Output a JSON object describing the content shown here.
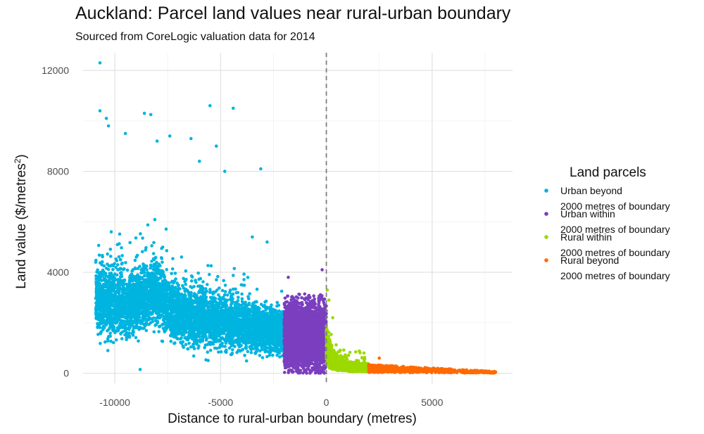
{
  "title": "Auckland: Parcel land values near rural-urban boundary",
  "subtitle": "Sourced from CoreLogic valuation data for 2014",
  "chart_data": {
    "type": "scatter",
    "xlabel": "Distance to rural-urban boundary (metres)",
    "ylabel_main": "Land value ($/metres",
    "ylabel_sup": "2",
    "ylabel_close": ")",
    "xlim": [
      -11500,
      8800
    ],
    "ylim": [
      -400,
      12700
    ],
    "x_ticks": [
      -10000,
      -5000,
      0,
      5000
    ],
    "x_tick_labels": [
      "-10000",
      "-5000",
      "0",
      "5000"
    ],
    "y_ticks": [
      0,
      4000,
      8000,
      12000
    ],
    "y_tick_labels": [
      "0",
      "4000",
      "8000",
      "12000"
    ],
    "reference_line": {
      "x": 0,
      "style": "dashed"
    },
    "grid": true,
    "legend": {
      "title": "Land parcels",
      "placement": "right",
      "entries": [
        {
          "line1": "Urban beyond",
          "line2": "2000 metres of boundary",
          "color": "#00b4e0"
        },
        {
          "line1": "Urban within",
          "line2": "2000 metres of boundary",
          "color": "#7a3fbf"
        },
        {
          "line1": "Rural within",
          "line2": "2000 metres of boundary",
          "color": "#9bd900"
        },
        {
          "line1": "Rural beyond",
          "line2": "2000 metres of boundary",
          "color": "#ff6a00"
        }
      ]
    },
    "series": [
      {
        "name": "Urban beyond 2000 metres of boundary",
        "color": "#00b4e0",
        "x_range": [
          -10900,
          -2000
        ],
        "typical_y_range": [
          600,
          4500
        ],
        "points": [
          {
            "x": -10700,
            "y": 12300
          },
          {
            "x": -10700,
            "y": 10400
          },
          {
            "x": -10400,
            "y": 10100
          },
          {
            "x": -10300,
            "y": 9800
          },
          {
            "x": -9500,
            "y": 9500
          },
          {
            "x": -8600,
            "y": 10300
          },
          {
            "x": -8300,
            "y": 10250
          },
          {
            "x": -8000,
            "y": 9200
          },
          {
            "x": -7400,
            "y": 9400
          },
          {
            "x": -6400,
            "y": 9300
          },
          {
            "x": -6000,
            "y": 8400
          },
          {
            "x": -5500,
            "y": 10600
          },
          {
            "x": -5200,
            "y": 9000
          },
          {
            "x": -4800,
            "y": 8000
          },
          {
            "x": -4400,
            "y": 10500
          },
          {
            "x": -3100,
            "y": 8100
          },
          {
            "x": -10900,
            "y": 4400
          },
          {
            "x": -8800,
            "y": 150
          },
          {
            "x": -3500,
            "y": 5400
          },
          {
            "x": -2800,
            "y": 5200
          }
        ]
      },
      {
        "name": "Urban within 2000 metres of boundary",
        "color": "#7a3fbf",
        "x_range": [
          -2000,
          0
        ],
        "typical_y_range": [
          0,
          3100
        ],
        "points": [
          {
            "x": -200,
            "y": 4100
          },
          {
            "x": -1800,
            "y": 3800
          }
        ]
      },
      {
        "name": "Rural within 2000 metres of boundary",
        "color": "#9bd900",
        "x_range": [
          0,
          2000
        ],
        "typical_y_range": [
          0,
          700
        ],
        "points": [
          {
            "x": 40,
            "y": 3300
          },
          {
            "x": 120,
            "y": 2900
          },
          {
            "x": 300,
            "y": 2200
          }
        ]
      },
      {
        "name": "Rural beyond 2000 metres of boundary",
        "color": "#ff6a00",
        "x_range": [
          2000,
          8000
        ],
        "typical_y_range": [
          0,
          500
        ],
        "points": [
          {
            "x": 8000,
            "y": 50
          },
          {
            "x": 2500,
            "y": 600
          }
        ]
      }
    ]
  }
}
